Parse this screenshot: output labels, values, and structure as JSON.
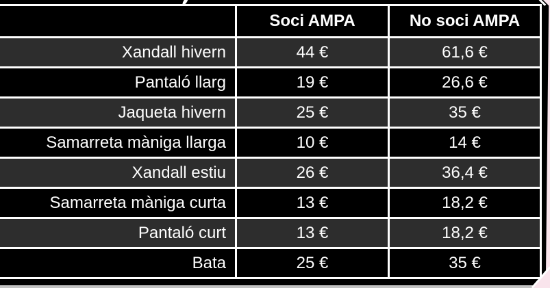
{
  "page": {
    "background_color": "#000000",
    "grid_line_color": "#ffffff",
    "alt_row_color": "#2d2d2d",
    "page_edge_pink": "#f9e4ec",
    "bottom_bar_color": "#c2c2c2",
    "text_color": "#fdfdfd"
  },
  "table": {
    "columns": [
      "",
      "Soci AMPA",
      "No soci AMPA"
    ],
    "rows": [
      {
        "label": "Xandall hivern",
        "soci": "44 €",
        "no_soci": "61,6 €"
      },
      {
        "label": "Pantaló llarg",
        "soci": "19 €",
        "no_soci": "26,6 €"
      },
      {
        "label": "Jaqueta hivern",
        "soci": "25 €",
        "no_soci": "35 €"
      },
      {
        "label": "Samarreta màniga llarga",
        "soci": "10 €",
        "no_soci": "14 €"
      },
      {
        "label": "Xandall estiu",
        "soci": "26 €",
        "no_soci": "36,4 €"
      },
      {
        "label": "Samarreta màniga curta",
        "soci": "13 €",
        "no_soci": "18,2 €"
      },
      {
        "label": "Pantaló curt",
        "soci": "13 €",
        "no_soci": "18,2 €"
      },
      {
        "label": "Bata",
        "soci": "25 €",
        "no_soci": "35 €"
      }
    ]
  },
  "chart_data": {
    "type": "table",
    "title": "",
    "columns": [
      "",
      "Soci AMPA",
      "No soci AMPA"
    ],
    "rows": [
      [
        "Xandall hivern",
        "44 €",
        "61,6 €"
      ],
      [
        "Pantaló llarg",
        "19 €",
        "26,6 €"
      ],
      [
        "Jaqueta hivern",
        "25 €",
        "35 €"
      ],
      [
        "Samarreta màniga llarga",
        "10 €",
        "14 €"
      ],
      [
        "Xandall estiu",
        "26 €",
        "36,4 €"
      ],
      [
        "Samarreta màniga curta",
        "13 €",
        "18,2 €"
      ],
      [
        "Pantaló curt",
        "13 €",
        "18,2 €"
      ],
      [
        "Bata",
        "25 €",
        "35 €"
      ]
    ]
  }
}
